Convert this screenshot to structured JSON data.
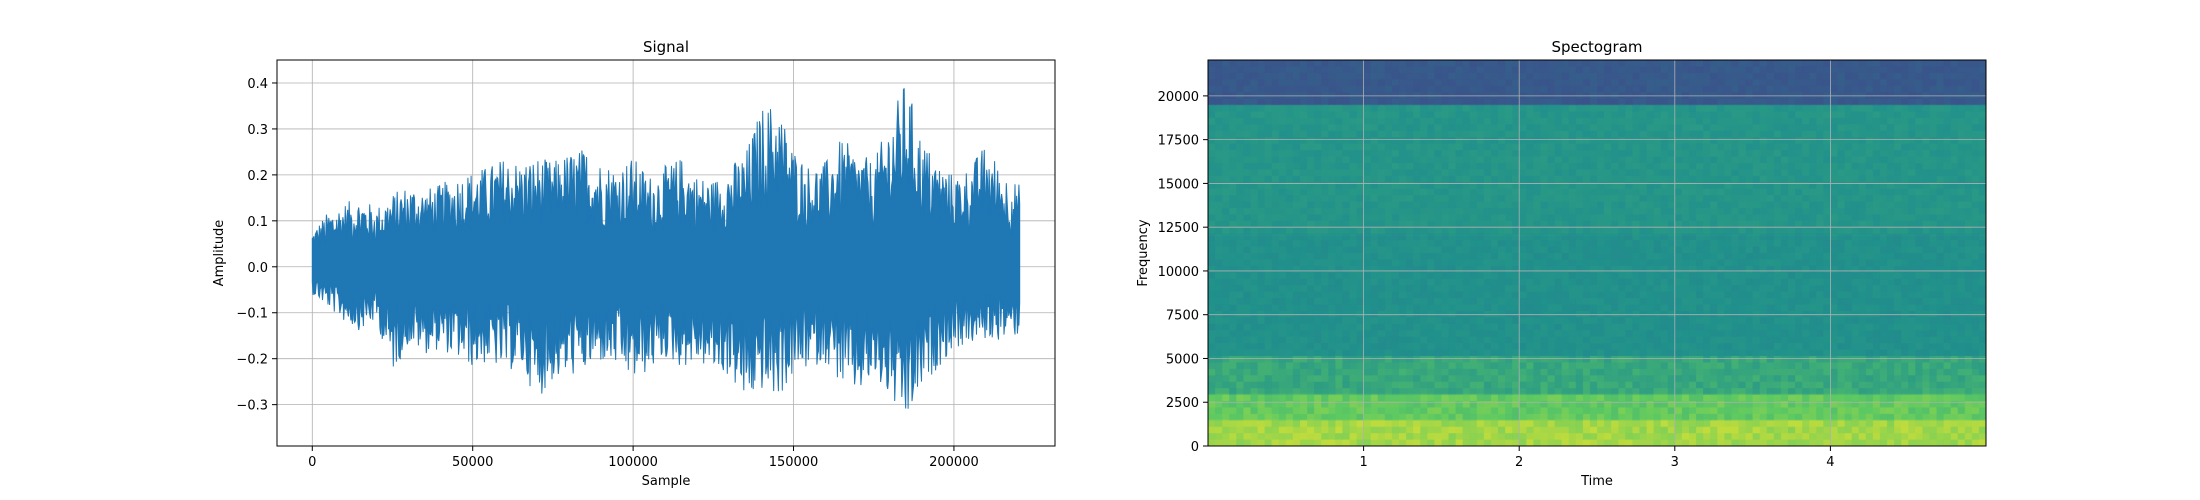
{
  "chart_data": [
    {
      "type": "line",
      "title": "Signal",
      "xlabel": "Sample",
      "ylabel": "Amplitude",
      "xlim": [
        -11000,
        231500
      ],
      "ylim": [
        -0.39,
        0.45
      ],
      "grid": true,
      "xticks": [
        0,
        50000,
        100000,
        150000,
        200000
      ],
      "xtick_labels": [
        "0",
        "50000",
        "100000",
        "150000",
        "200000"
      ],
      "yticks": [
        -0.3,
        -0.2,
        -0.1,
        0.0,
        0.1,
        0.2,
        0.3,
        0.4
      ],
      "ytick_labels": [
        "−0.3",
        "−0.2",
        "−0.1",
        "0.0",
        "0.1",
        "0.2",
        "0.3",
        "0.4"
      ],
      "series": [
        {
          "color": "#1f77b4",
          "x": [
            0,
            5000,
            10000,
            15000,
            20000,
            25000,
            30000,
            35000,
            40000,
            45000,
            50000,
            55000,
            60000,
            65000,
            70000,
            75000,
            80000,
            85000,
            90000,
            95000,
            100000,
            105000,
            110000,
            115000,
            120000,
            125000,
            130000,
            135000,
            140000,
            145000,
            150000,
            155000,
            160000,
            165000,
            170000,
            175000,
            180000,
            185000,
            190000,
            195000,
            200000,
            205000,
            210000,
            215000,
            220500
          ],
          "max": [
            0.08,
            0.12,
            0.14,
            0.15,
            0.13,
            0.16,
            0.18,
            0.17,
            0.18,
            0.2,
            0.21,
            0.22,
            0.24,
            0.23,
            0.24,
            0.23,
            0.25,
            0.26,
            0.23,
            0.22,
            0.24,
            0.2,
            0.22,
            0.24,
            0.2,
            0.19,
            0.22,
            0.25,
            0.35,
            0.36,
            0.26,
            0.22,
            0.23,
            0.28,
            0.25,
            0.23,
            0.32,
            0.41,
            0.28,
            0.23,
            0.2,
            0.22,
            0.27,
            0.21,
            0.18
          ],
          "min": [
            -0.06,
            -0.09,
            -0.12,
            -0.14,
            -0.12,
            -0.23,
            -0.17,
            -0.19,
            -0.18,
            -0.2,
            -0.22,
            -0.21,
            -0.23,
            -0.22,
            -0.29,
            -0.25,
            -0.24,
            -0.23,
            -0.21,
            -0.22,
            -0.25,
            -0.23,
            -0.2,
            -0.22,
            -0.21,
            -0.23,
            -0.24,
            -0.3,
            -0.27,
            -0.29,
            -0.24,
            -0.22,
            -0.21,
            -0.26,
            -0.28,
            -0.25,
            -0.29,
            -0.35,
            -0.27,
            -0.22,
            -0.18,
            -0.17,
            -0.16,
            -0.16,
            -0.15
          ]
        }
      ]
    },
    {
      "type": "heatmap",
      "title": "Spectogram",
      "xlabel": "Time",
      "ylabel": "Frequency",
      "xlim": [
        0,
        5.0
      ],
      "ylim": [
        0,
        22050
      ],
      "grid": true,
      "xticks": [
        1,
        2,
        3,
        4
      ],
      "xtick_labels": [
        "1",
        "2",
        "3",
        "4"
      ],
      "yticks": [
        0,
        2500,
        5000,
        7500,
        10000,
        12500,
        15000,
        17500,
        20000
      ],
      "ytick_labels": [
        "0",
        "2500",
        "5000",
        "7500",
        "10000",
        "12500",
        "15000",
        "17500",
        "20000"
      ],
      "colormap": "viridis",
      "frequency_bands": [
        {
          "from": 19500,
          "to": 22050,
          "level": 0.28
        },
        {
          "from": 12000,
          "to": 19500,
          "level": 0.52
        },
        {
          "from": 5000,
          "to": 12000,
          "level": 0.5
        },
        {
          "from": 3000,
          "to": 5000,
          "level": 0.6
        },
        {
          "from": 1500,
          "to": 3000,
          "level": 0.75
        },
        {
          "from": 0,
          "to": 1500,
          "level": 0.86
        }
      ]
    }
  ]
}
